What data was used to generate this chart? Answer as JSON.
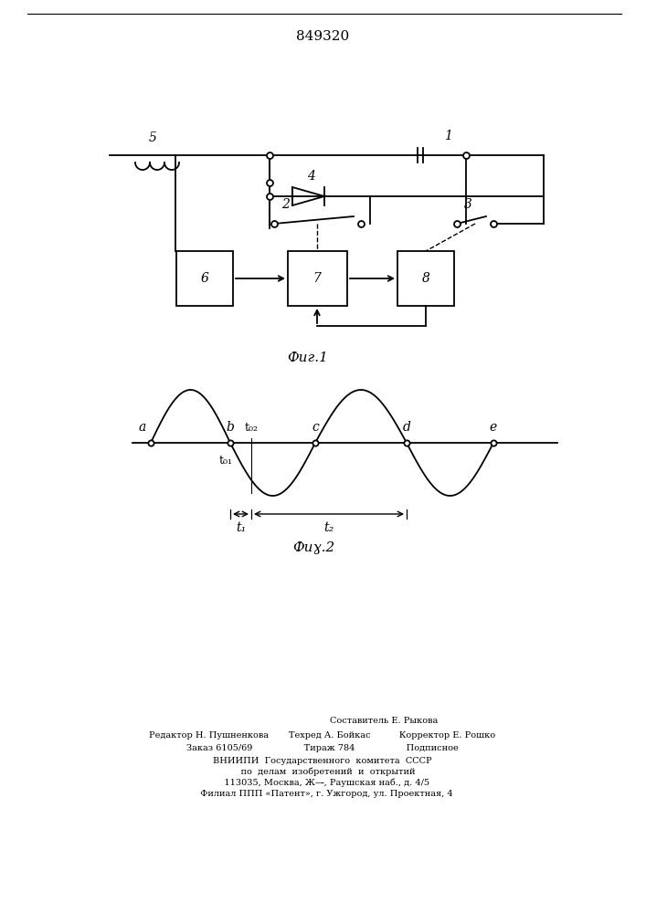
{
  "title": "849320",
  "fig1_label": "Фиг.1",
  "fig2_label": "Фиɣ.2",
  "background_color": "#ffffff",
  "line_color": "#000000",
  "footer_lines": [
    "Составитель Е. Рыкова",
    "Редактор Н. Пушненкова       Техред А. Бойкас          Корректор Е. Рошко",
    "Заказ 6105/69                  Тираж 784                  Подписное",
    "ВНИИПИ  Государственного  комитета  СССР",
    "    по  делам  изобретений  и  открытий",
    "   113035, Москва, Ж—̵, Раушская наб., д. 4/5",
    "   Филиал ППП «Патент», г. Ужгород, ул. Проектная, 4"
  ]
}
